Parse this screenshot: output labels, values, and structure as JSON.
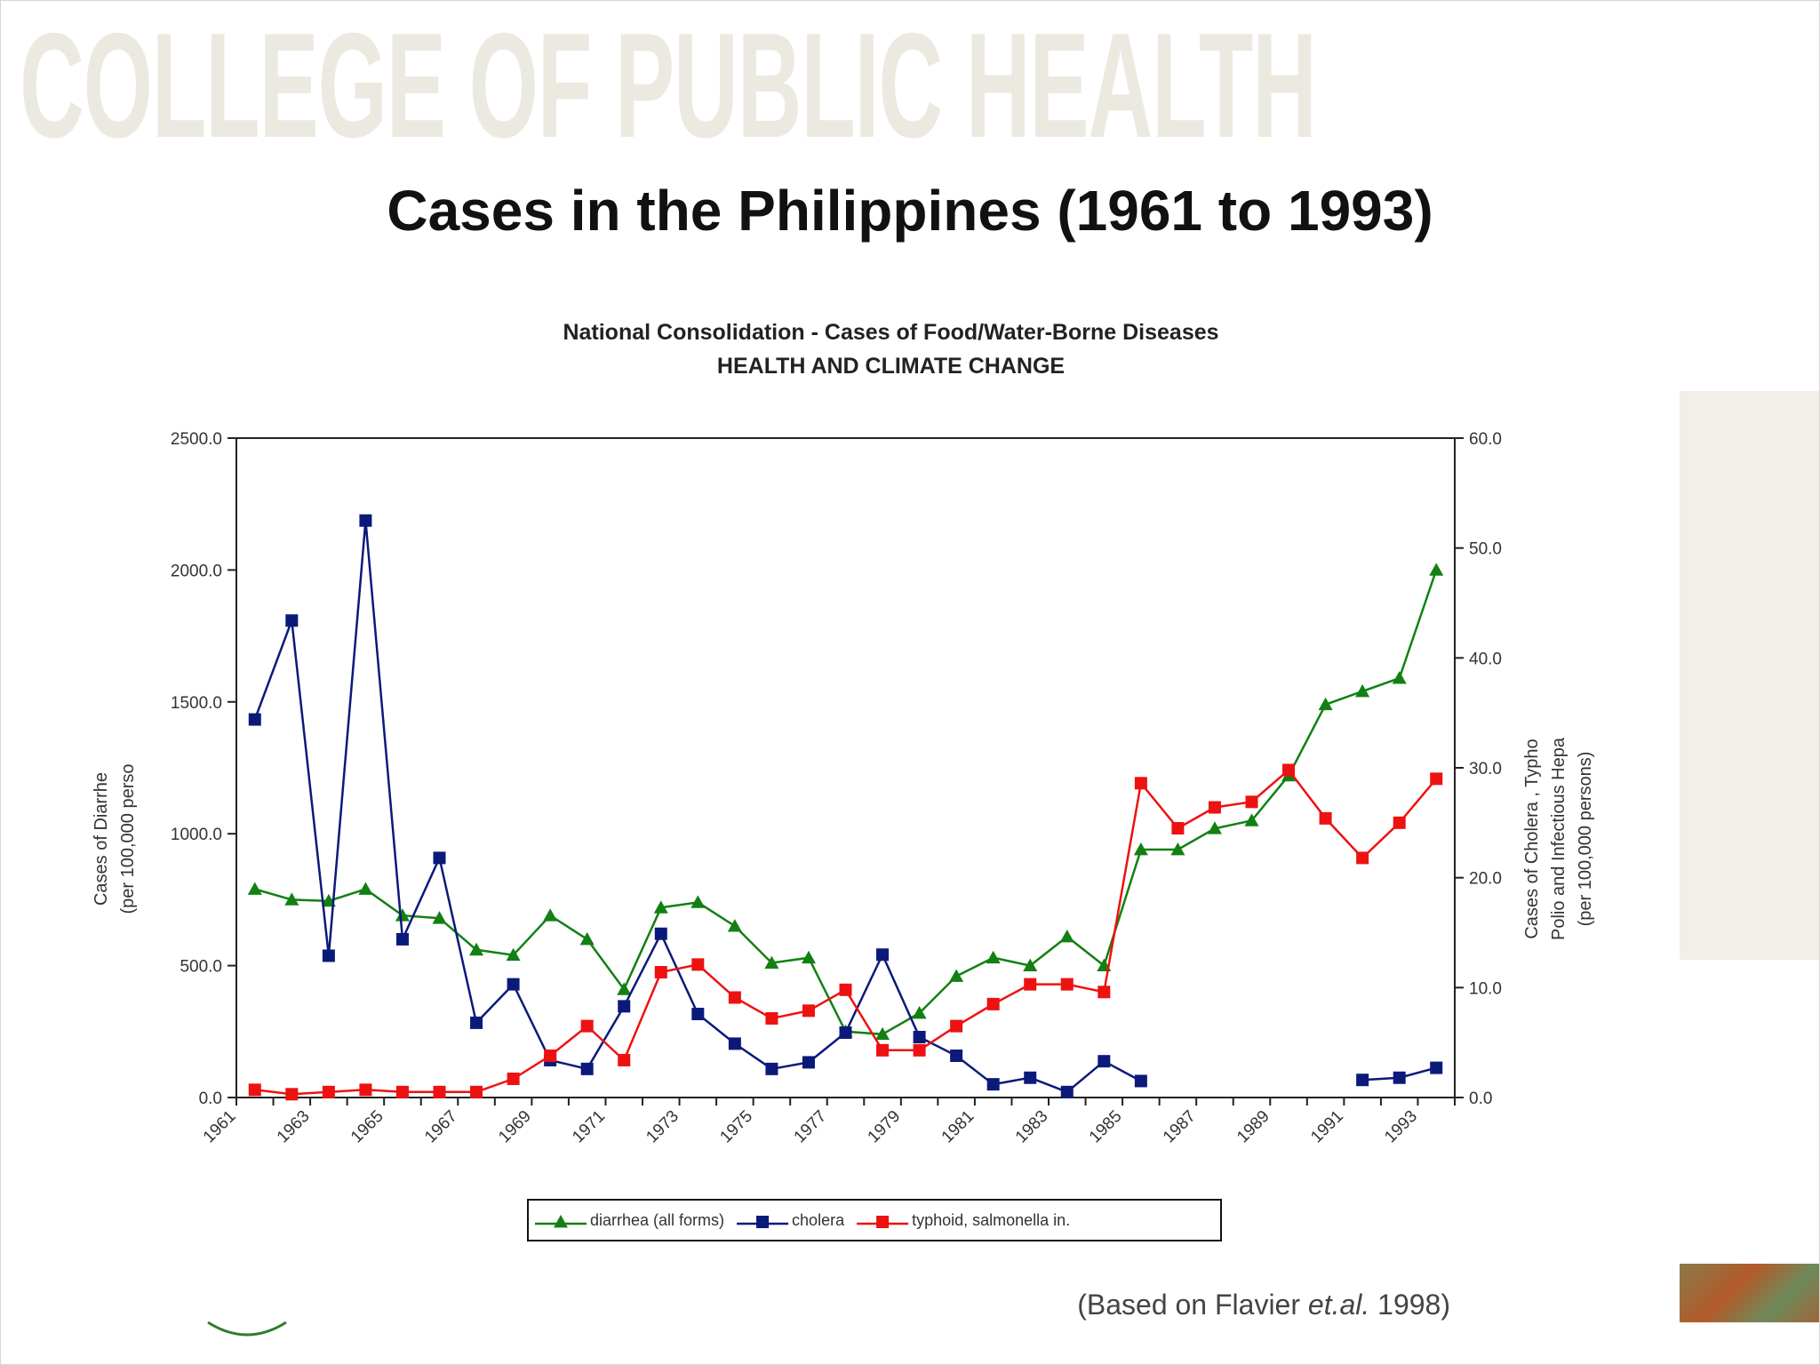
{
  "banner": "COLLEGE OF PUBLIC HEALTH",
  "slide_title": "Cases in the Philippines (1961 to 1993)",
  "citation": {
    "before": "(Based on Flavier ",
    "italic": "et.al.",
    "after": " 1998)"
  },
  "colors": {
    "diarrhea": "#128012",
    "cholera": "#0b1a7a",
    "typhoid": "#ee1111",
    "banner": "#ece9e1"
  },
  "chart_data": {
    "type": "line",
    "title": "National Consolidation - Cases of Food/Water-Borne Diseases",
    "subtitle": "HEALTH AND CLIMATE CHANGE",
    "ylabel_left": [
      "Cases of Diarrhe",
      "(per 100,000 perso"
    ],
    "ylabel_right": [
      "Cases of Cholera , Typho",
      "Polio and Infectious Hepa",
      "(per 100,000 persons)"
    ],
    "x_tick_labels": [
      "1961",
      "1963",
      "1965",
      "1967",
      "1969",
      "1971",
      "1973",
      "1975",
      "1977",
      "1979",
      "1981",
      "1983",
      "1985",
      "1987",
      "1989",
      "1991",
      "1993"
    ],
    "xlim": [
      1961,
      1994
    ],
    "ylim_left": [
      0,
      2500
    ],
    "ylim_right": [
      0,
      60
    ],
    "left_ticks": [
      "0.0",
      "500.0",
      "1000.0",
      "1500.0",
      "2000.0",
      "2500.0"
    ],
    "right_ticks": [
      "0.0",
      "10.0",
      "20.0",
      "30.0",
      "40.0",
      "50.0",
      "60.0"
    ],
    "legend_position": "bottom-center",
    "series": [
      {
        "name": "diarrhea (all forms)",
        "axis": "left",
        "marker": "triangle",
        "color": "#128012",
        "points": [
          [
            1961.5,
            790
          ],
          [
            1962.5,
            750
          ],
          [
            1963.5,
            745
          ],
          [
            1964.5,
            790
          ],
          [
            1965.5,
            690
          ],
          [
            1966.5,
            680
          ],
          [
            1967.5,
            560
          ],
          [
            1968.5,
            540
          ],
          [
            1969.5,
            690
          ],
          [
            1970.5,
            600
          ],
          [
            1971.5,
            410
          ],
          [
            1972.5,
            720
          ],
          [
            1973.5,
            740
          ],
          [
            1974.5,
            650
          ],
          [
            1975.5,
            510
          ],
          [
            1976.5,
            530
          ],
          [
            1977.5,
            250
          ],
          [
            1978.5,
            240
          ],
          [
            1979.5,
            320
          ],
          [
            1980.5,
            460
          ],
          [
            1981.5,
            530
          ],
          [
            1982.5,
            500
          ],
          [
            1983.5,
            610
          ],
          [
            1984.5,
            500
          ],
          [
            1985.5,
            940
          ],
          [
            1986.5,
            940
          ],
          [
            1987.5,
            1020
          ],
          [
            1988.5,
            1050
          ],
          [
            1989.5,
            1220
          ],
          [
            1990.5,
            1490
          ],
          [
            1991.5,
            1540
          ],
          [
            1992.5,
            1590
          ],
          [
            1993.5,
            2000
          ]
        ]
      },
      {
        "name": "cholera",
        "axis": "right",
        "marker": "square",
        "color": "#0b1a7a",
        "segments": [
          [
            [
              1961.5,
              34.4
            ],
            [
              1962.5,
              43.4
            ],
            [
              1963.5,
              12.9
            ],
            [
              1964.5,
              52.5
            ],
            [
              1965.5,
              14.4
            ],
            [
              1966.5,
              21.8
            ],
            [
              1967.5,
              6.8
            ],
            [
              1968.5,
              10.3
            ],
            [
              1969.5,
              3.4
            ],
            [
              1970.5,
              2.6
            ],
            [
              1971.5,
              8.3
            ],
            [
              1972.5,
              14.9
            ],
            [
              1973.5,
              7.6
            ],
            [
              1974.5,
              4.9
            ],
            [
              1975.5,
              2.6
            ],
            [
              1976.5,
              3.2
            ],
            [
              1977.5,
              5.9
            ],
            [
              1978.5,
              13.0
            ],
            [
              1979.5,
              5.5
            ],
            [
              1980.5,
              3.8
            ],
            [
              1981.5,
              1.2
            ],
            [
              1982.5,
              1.8
            ],
            [
              1983.5,
              0.5
            ],
            [
              1984.5,
              3.3
            ],
            [
              1985.5,
              1.5
            ]
          ],
          [
            [
              1991.5,
              1.6
            ],
            [
              1992.5,
              1.8
            ],
            [
              1993.5,
              2.7
            ]
          ]
        ]
      },
      {
        "name": "typhoid, salmonella in.",
        "axis": "right",
        "marker": "square",
        "color": "#ee1111",
        "points": [
          [
            1961.5,
            0.7
          ],
          [
            1962.5,
            0.3
          ],
          [
            1963.5,
            0.5
          ],
          [
            1964.5,
            0.7
          ],
          [
            1965.5,
            0.5
          ],
          [
            1966.5,
            0.5
          ],
          [
            1967.5,
            0.5
          ],
          [
            1968.5,
            1.7
          ],
          [
            1969.5,
            3.8
          ],
          [
            1970.5,
            6.5
          ],
          [
            1971.5,
            3.4
          ],
          [
            1972.5,
            11.4
          ],
          [
            1973.5,
            12.1
          ],
          [
            1974.5,
            9.1
          ],
          [
            1975.5,
            7.2
          ],
          [
            1976.5,
            7.9
          ],
          [
            1977.5,
            9.8
          ],
          [
            1978.5,
            4.3
          ],
          [
            1979.5,
            4.3
          ],
          [
            1980.5,
            6.5
          ],
          [
            1981.5,
            8.5
          ],
          [
            1982.5,
            10.3
          ],
          [
            1983.5,
            10.3
          ],
          [
            1984.5,
            9.6
          ],
          [
            1985.5,
            28.6
          ],
          [
            1986.5,
            24.5
          ],
          [
            1987.5,
            26.4
          ],
          [
            1988.5,
            26.9
          ],
          [
            1989.5,
            29.8
          ],
          [
            1990.5,
            25.4
          ],
          [
            1991.5,
            21.8
          ],
          [
            1992.5,
            25.0
          ],
          [
            1993.5,
            29.0
          ]
        ]
      }
    ]
  }
}
